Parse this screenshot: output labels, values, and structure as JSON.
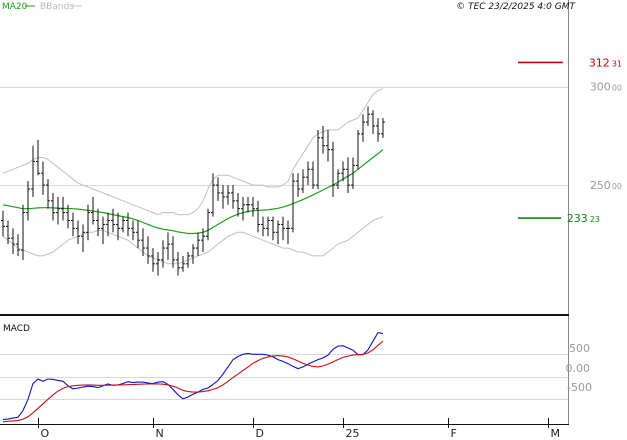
{
  "legend": {
    "ma": "MA20",
    "bb": "BBands"
  },
  "copyright": "© TEC 23/2/2025 4:0 GMT",
  "colors": {
    "ma": "#1aa01a",
    "bands": "#c0c0c0",
    "bars": "#111111",
    "resistance": "#cc0000",
    "support": "#118811",
    "macd": "#1010cc",
    "signal": "#cc1010",
    "grid": "#d9d9d9"
  },
  "price_axis": {
    "ticks": [
      {
        "value": 300,
        "main": "300",
        "sub": "00"
      },
      {
        "value": 250,
        "main": "250",
        "sub": "00"
      }
    ]
  },
  "levels": {
    "resistance": {
      "value": 312.31,
      "main": "312",
      "sub": "31"
    },
    "support": {
      "value": 233.23,
      "main": "233",
      "sub": "23"
    }
  },
  "macd_panel": {
    "label": "MACD",
    "ticks": [
      "500",
      "0.00",
      "-500"
    ]
  },
  "x_axis": {
    "labels": [
      "O",
      "N",
      "D",
      "25",
      "F",
      "M"
    ]
  },
  "chart_data": {
    "type": "ohlc",
    "title": "",
    "y_range": [
      184,
      344
    ],
    "macd_range": [
      -1050,
      1350
    ],
    "categories": [
      "O",
      "N",
      "D",
      "25",
      "F",
      "M"
    ],
    "category_index": [
      7,
      30,
      50,
      68,
      89,
      109
    ],
    "ohlc": [
      [
        232,
        237,
        224,
        229
      ],
      [
        229,
        232,
        220,
        223
      ],
      [
        223,
        228,
        215,
        220
      ],
      [
        220,
        225,
        214,
        217
      ],
      [
        217,
        240,
        212,
        236
      ],
      [
        236,
        252,
        232,
        248
      ],
      [
        248,
        270,
        244,
        262
      ],
      [
        262,
        273,
        255,
        256
      ],
      [
        256,
        262,
        245,
        250
      ],
      [
        250,
        253,
        238,
        242
      ],
      [
        242,
        246,
        232,
        236
      ],
      [
        236,
        244,
        230,
        238
      ],
      [
        238,
        244,
        232,
        236
      ],
      [
        236,
        240,
        228,
        232
      ],
      [
        232,
        236,
        224,
        228
      ],
      [
        228,
        232,
        220,
        224
      ],
      [
        224,
        230,
        216,
        226
      ],
      [
        226,
        240,
        222,
        236
      ],
      [
        236,
        244,
        230,
        232
      ],
      [
        232,
        238,
        224,
        228
      ],
      [
        228,
        234,
        220,
        230
      ],
      [
        230,
        236,
        224,
        232
      ],
      [
        232,
        238,
        226,
        230
      ],
      [
        230,
        236,
        222,
        228
      ],
      [
        228,
        234,
        226,
        232
      ],
      [
        232,
        236,
        224,
        228
      ],
      [
        228,
        232,
        222,
        226
      ],
      [
        226,
        232,
        218,
        222
      ],
      [
        222,
        228,
        214,
        218
      ],
      [
        218,
        224,
        210,
        214
      ],
      [
        214,
        218,
        206,
        210
      ],
      [
        210,
        216,
        204,
        212
      ],
      [
        212,
        222,
        208,
        218
      ],
      [
        218,
        226,
        212,
        220
      ],
      [
        220,
        224,
        208,
        212
      ],
      [
        212,
        216,
        204,
        208
      ],
      [
        208,
        214,
        206,
        210
      ],
      [
        210,
        216,
        208,
        214
      ],
      [
        214,
        220,
        210,
        218
      ],
      [
        218,
        226,
        214,
        222
      ],
      [
        222,
        228,
        216,
        224
      ],
      [
        224,
        238,
        222,
        236
      ],
      [
        236,
        256,
        234,
        250
      ],
      [
        250,
        254,
        242,
        246
      ],
      [
        246,
        250,
        238,
        244
      ],
      [
        244,
        250,
        240,
        246
      ],
      [
        246,
        250,
        238,
        242
      ],
      [
        242,
        246,
        234,
        238
      ],
      [
        238,
        244,
        232,
        240
      ],
      [
        240,
        244,
        236,
        240
      ],
      [
        240,
        244,
        234,
        238
      ],
      [
        238,
        242,
        226,
        230
      ],
      [
        230,
        234,
        224,
        228
      ],
      [
        228,
        234,
        224,
        232
      ],
      [
        232,
        234,
        222,
        226
      ],
      [
        226,
        232,
        220,
        230
      ],
      [
        230,
        234,
        222,
        228
      ],
      [
        228,
        232,
        220,
        228
      ],
      [
        228,
        256,
        226,
        252
      ],
      [
        252,
        256,
        244,
        248
      ],
      [
        248,
        258,
        246,
        254
      ],
      [
        254,
        262,
        250,
        258
      ],
      [
        258,
        262,
        248,
        250
      ],
      [
        250,
        278,
        248,
        274
      ],
      [
        274,
        280,
        266,
        270
      ],
      [
        270,
        278,
        262,
        268
      ],
      [
        268,
        272,
        244,
        250
      ],
      [
        250,
        258,
        248,
        256
      ],
      [
        256,
        262,
        252,
        258
      ],
      [
        258,
        264,
        246,
        250
      ],
      [
        250,
        264,
        248,
        260
      ],
      [
        260,
        278,
        258,
        276
      ],
      [
        276,
        286,
        272,
        282
      ],
      [
        282,
        290,
        280,
        286
      ],
      [
        286,
        288,
        276,
        280
      ],
      [
        280,
        284,
        272,
        276
      ],
      [
        276,
        284,
        274,
        282
      ]
    ],
    "ma20": [
      240,
      239.5,
      239,
      238.5,
      238,
      238,
      238.2,
      238.4,
      238.5,
      238.5,
      238.4,
      238.3,
      238.2,
      238.1,
      238,
      237.8,
      237.5,
      237.2,
      236.8,
      236.4,
      236,
      235.5,
      235,
      234.5,
      234,
      233.5,
      232.8,
      232,
      231,
      230,
      229,
      228.2,
      227.6,
      227.2,
      226.8,
      226.2,
      225.8,
      225.4,
      225.4,
      225.6,
      226,
      227,
      228.5,
      230,
      231.5,
      233,
      234.2,
      235.2,
      236,
      236.6,
      237,
      237.2,
      237.3,
      237.5,
      237.8,
      238.2,
      238.8,
      239.6,
      240.6,
      241.6,
      242.6,
      243.8,
      245,
      246.2,
      247.5,
      248.8,
      250,
      251.5,
      253,
      254.5,
      256,
      258,
      260,
      262,
      264,
      266,
      268
    ],
    "bb_upper": [
      256,
      257,
      258,
      259,
      260,
      261,
      263,
      264,
      264,
      263,
      261,
      259,
      257,
      255,
      253,
      251,
      250,
      249,
      248,
      247,
      246,
      245,
      244,
      243,
      242,
      241,
      240,
      239,
      238,
      237,
      236,
      235,
      236,
      236,
      236,
      235,
      235,
      235,
      236,
      238,
      242,
      248,
      253,
      255,
      255,
      255,
      254,
      253,
      252,
      251,
      250,
      250,
      250,
      249,
      249,
      249,
      250,
      252,
      258,
      262,
      266,
      270,
      274,
      276,
      277,
      278,
      278,
      278,
      280,
      282,
      283,
      284,
      288,
      292,
      296,
      298,
      299
    ],
    "bb_lower": [
      224,
      222,
      220,
      218,
      217,
      216,
      215,
      214,
      214,
      215,
      216,
      218,
      220,
      222,
      223,
      224,
      225,
      226,
      226,
      227,
      227,
      226,
      225,
      224,
      223,
      222,
      220,
      218,
      216,
      214,
      213,
      212,
      211,
      210,
      210,
      210,
      211,
      212,
      213,
      214,
      215,
      216,
      218,
      220,
      222,
      224,
      225,
      226,
      226,
      225,
      224,
      223,
      222,
      221,
      220,
      219,
      218,
      218,
      217,
      216,
      216,
      215,
      214,
      214,
      214,
      216,
      218,
      220,
      221,
      222,
      224,
      226,
      228,
      230,
      232,
      233,
      234
    ],
    "macd": [
      -950,
      -940,
      -920,
      -900,
      -750,
      -500,
      -150,
      -50,
      -100,
      -50,
      -60,
      -80,
      -100,
      -200,
      -270,
      -250,
      -230,
      -210,
      -220,
      -240,
      -200,
      -160,
      -190,
      -180,
      -150,
      -110,
      -130,
      -120,
      -120,
      -140,
      -150,
      -120,
      -110,
      -170,
      -280,
      -400,
      -490,
      -450,
      -390,
      -340,
      -280,
      -250,
      -170,
      -80,
      60,
      220,
      380,
      450,
      500,
      520,
      500,
      500,
      500,
      480,
      440,
      380,
      340,
      290,
      230,
      180,
      220,
      280,
      330,
      380,
      420,
      480,
      610,
      680,
      690,
      640,
      590,
      490,
      490,
      600,
      790,
      980,
      960
    ],
    "signal": [
      -1000,
      -990,
      -980,
      -970,
      -940,
      -890,
      -800,
      -700,
      -600,
      -500,
      -400,
      -320,
      -260,
      -220,
      -200,
      -190,
      -185,
      -182,
      -185,
      -190,
      -190,
      -188,
      -185,
      -182,
      -180,
      -176,
      -172,
      -168,
      -164,
      -162,
      -160,
      -160,
      -165,
      -180,
      -210,
      -250,
      -300,
      -330,
      -340,
      -340,
      -330,
      -310,
      -280,
      -240,
      -180,
      -100,
      -20,
      60,
      140,
      220,
      300,
      360,
      410,
      440,
      460,
      470,
      460,
      440,
      400,
      350,
      300,
      260,
      230,
      220,
      240,
      280,
      330,
      380,
      430,
      460,
      480,
      490,
      500,
      530,
      600,
      700,
      790
    ]
  }
}
